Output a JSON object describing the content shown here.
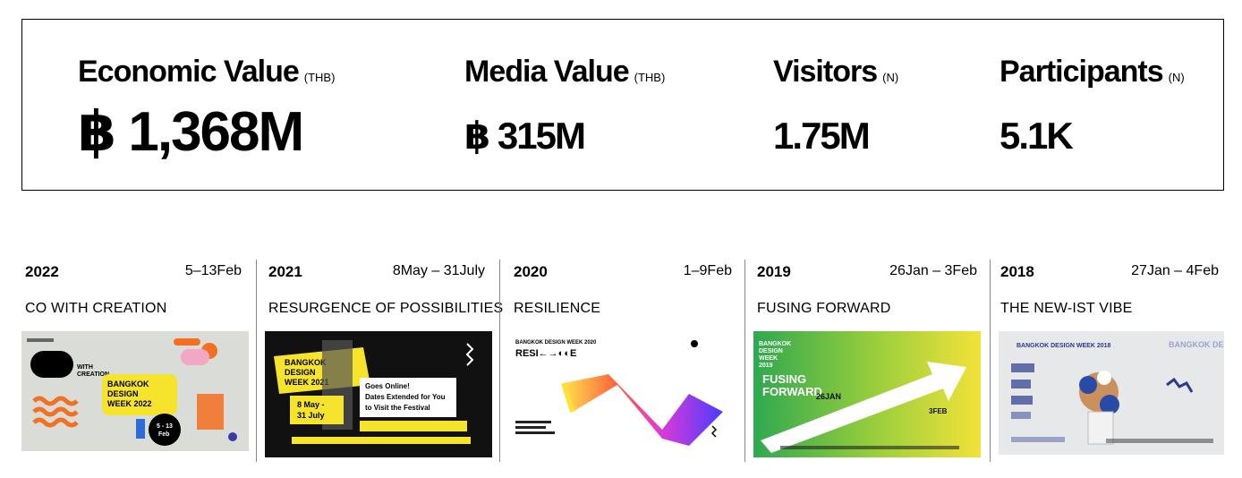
{
  "stats": [
    {
      "label": "Economic Value",
      "unit": "(THB)",
      "value": "฿ 1,368M"
    },
    {
      "label": "Media Value",
      "unit": "(THB)",
      "value": "฿ 315M"
    },
    {
      "label": "Visitors",
      "unit": "(N)",
      "value": "1.75M"
    },
    {
      "label": "Participants",
      "unit": "(N)",
      "value": "5.1K"
    }
  ],
  "editions": [
    {
      "year": "2022",
      "dates": "5–13Feb",
      "theme": "CO WITH CREATION",
      "poster": {
        "line1": "WITH",
        "line2": "CREATION",
        "title1": "BANGKOK",
        "title2": "DESIGN",
        "title3": "WEEK 2022",
        "badge_top": "5 - 13",
        "badge_bottom": "Feb"
      }
    },
    {
      "year": "2021",
      "dates": "8May – 31July",
      "theme": "RESURGENCE OF POSSIBILITIES",
      "poster": {
        "title1": "BANGKOK",
        "title2": "DESIGN",
        "title3": "WEEK 2021",
        "date1": "8 May -",
        "date2": "31 July",
        "headline1": "Goes Online!",
        "headline2": "Dates Extended for You",
        "headline3": "to Visit the Festival"
      }
    },
    {
      "year": "2020",
      "dates": "1–9Feb",
      "theme": "RESILIENCE",
      "poster": {
        "header": "BANGKOK DESIGN WEEK 2020",
        "logo": "RESI←→◐◐E"
      }
    },
    {
      "year": "2019",
      "dates": "26Jan – 3Feb",
      "theme": "FUSING FORWARD",
      "poster": {
        "title1": "BANGKOK",
        "title2": "DESIGN",
        "title3": "WEEK",
        "title4": "2019",
        "motto1": "FUSING",
        "motto2": "FORWARD",
        "date_start": "26JAN",
        "date_end": "3FEB"
      }
    },
    {
      "year": "2018",
      "dates": "27Jan – 4Feb",
      "theme": "THE NEW-IST VIBE",
      "poster": {
        "title": "BANGKOK DESIGN WEEK 2018",
        "side": "BANGKOK DESIGN WEEK"
      }
    }
  ]
}
